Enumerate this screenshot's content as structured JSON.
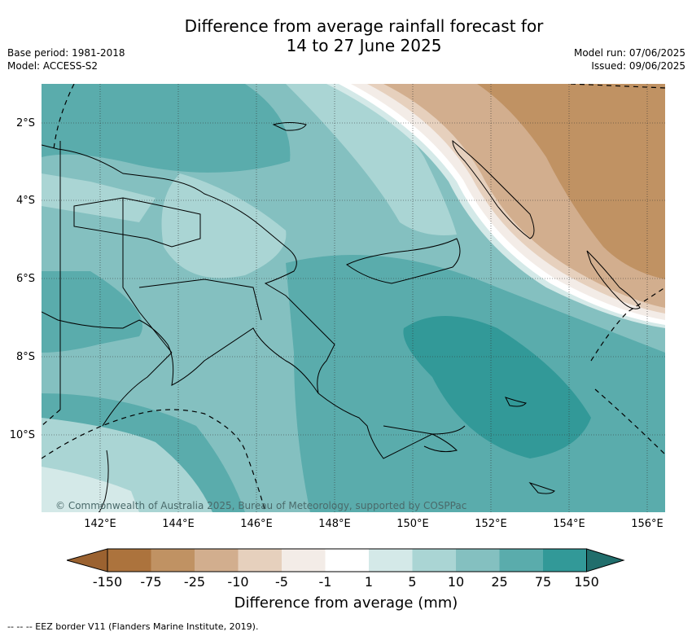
{
  "title_line1": "Difference from average rainfall forecast for",
  "title_line2": "14 to 27 June 2025",
  "base_period": "Base period: 1981-2018",
  "model": "Model: ACCESS-S2",
  "model_run": "Model run: 07/06/2025",
  "issued": "Issued: 09/06/2025",
  "copyright": "© Commonwealth of Australia 2025, Bureau of Meteorology, supported by COSPPac",
  "lat_labels": [
    "2°S",
    "4°S",
    "6°S",
    "8°S",
    "10°S"
  ],
  "lon_labels": [
    "142°E",
    "144°E",
    "146°E",
    "148°E",
    "150°E",
    "152°E",
    "154°E",
    "156°E"
  ],
  "colorbar": {
    "label": "Difference from average (mm)",
    "ticks": [
      "-150",
      "-75",
      "-25",
      "-10",
      "-5",
      "-1",
      "1",
      "5",
      "10",
      "25",
      "75",
      "150"
    ],
    "colors": {
      "lt_-150": "#9b6230",
      "-150_-75": "#ac733d",
      "-75_-25": "#c09263",
      "-25_-10": "#d2ae8e",
      "-10_-5": "#e6d0bd",
      "-5_-1": "#f3ece7",
      "-1_1": "#ffffff",
      "1_5": "#d4e9e8",
      "5_10": "#aad5d4",
      "10_25": "#84c0c0",
      "25_75": "#5aacac",
      "75_150": "#329998",
      "gt_150": "#216e6c"
    }
  },
  "footer": "--  --  -- EEZ border V11 (Flanders Marine Institute, 2019)."
}
